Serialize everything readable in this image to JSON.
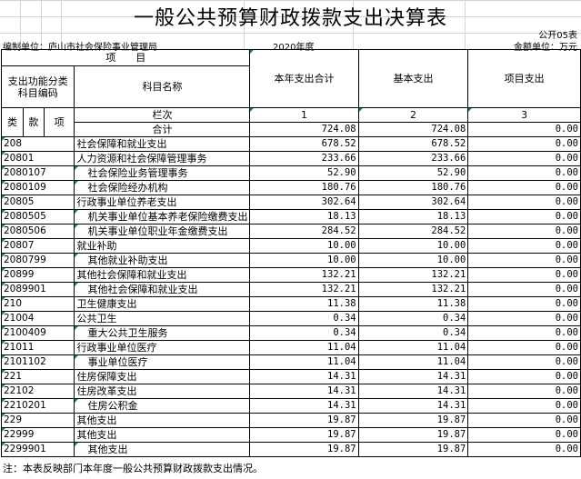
{
  "title": "一般公共预算财政拨款支出决算表",
  "form_no": "公开05表",
  "org": "编制单位：庐山市社会保险事业管理局",
  "year": "2020年度",
  "unit": "金额单位：万元",
  "header": {
    "item": "项　　目",
    "code_label": "支出功能分类科目编码",
    "name_label": "科目名称",
    "col1": "本年支出合计",
    "col2": "基本支出",
    "col3": "项目支出",
    "lei": "类",
    "kuan": "款",
    "xiang": "项",
    "lanci": "栏次",
    "n1": "1",
    "n2": "2",
    "n3": "3"
  },
  "total": {
    "label": "合计",
    "total": "724.08",
    "basic": "724.08",
    "project": "0.00"
  },
  "rows": [
    {
      "code": "208",
      "name": "社会保障和就业支出",
      "total": "678.52",
      "basic": "678.52",
      "project": "0.00",
      "indent": false
    },
    {
      "code": "20801",
      "name": "人力资源和社会保障管理事务",
      "total": "233.66",
      "basic": "233.66",
      "project": "0.00",
      "indent": false
    },
    {
      "code": "2080107",
      "name": "社会保险业务管理事务",
      "total": "52.90",
      "basic": "52.90",
      "project": "0.00",
      "indent": true
    },
    {
      "code": "2080109",
      "name": "社会保险经办机构",
      "total": "180.76",
      "basic": "180.76",
      "project": "0.00",
      "indent": true
    },
    {
      "code": "20805",
      "name": "行政事业单位养老支出",
      "total": "302.64",
      "basic": "302.64",
      "project": "0.00",
      "indent": false
    },
    {
      "code": "2080505",
      "name": "机关事业单位基本养老保险缴费支出",
      "total": "18.13",
      "basic": "18.13",
      "project": "0.00",
      "indent": true
    },
    {
      "code": "2080506",
      "name": "机关事业单位职业年金缴费支出",
      "total": "284.52",
      "basic": "284.52",
      "project": "0.00",
      "indent": true
    },
    {
      "code": "20807",
      "name": "就业补助",
      "total": "10.00",
      "basic": "10.00",
      "project": "0.00",
      "indent": false
    },
    {
      "code": "2080799",
      "name": "其他就业补助支出",
      "total": "10.00",
      "basic": "10.00",
      "project": "0.00",
      "indent": true
    },
    {
      "code": "20899",
      "name": "其他社会保障和就业支出",
      "total": "132.21",
      "basic": "132.21",
      "project": "0.00",
      "indent": false
    },
    {
      "code": "2089901",
      "name": "其他社会保障和就业支出",
      "total": "132.21",
      "basic": "132.21",
      "project": "0.00",
      "indent": true
    },
    {
      "code": "210",
      "name": "卫生健康支出",
      "total": "11.38",
      "basic": "11.38",
      "project": "0.00",
      "indent": false
    },
    {
      "code": "21004",
      "name": "公共卫生",
      "total": "0.34",
      "basic": "0.34",
      "project": "0.00",
      "indent": false
    },
    {
      "code": "2100409",
      "name": "重大公共卫生服务",
      "total": "0.34",
      "basic": "0.34",
      "project": "0.00",
      "indent": true
    },
    {
      "code": "21011",
      "name": "行政事业单位医疗",
      "total": "11.04",
      "basic": "11.04",
      "project": "0.00",
      "indent": false
    },
    {
      "code": "2101102",
      "name": "事业单位医疗",
      "total": "11.04",
      "basic": "11.04",
      "project": "0.00",
      "indent": true
    },
    {
      "code": "221",
      "name": "住房保障支出",
      "total": "14.31",
      "basic": "14.31",
      "project": "0.00",
      "indent": false
    },
    {
      "code": "22102",
      "name": "住房改革支出",
      "total": "14.31",
      "basic": "14.31",
      "project": "0.00",
      "indent": false
    },
    {
      "code": "2210201",
      "name": "住房公积金",
      "total": "14.31",
      "basic": "14.31",
      "project": "0.00",
      "indent": true
    },
    {
      "code": "229",
      "name": "其他支出",
      "total": "19.87",
      "basic": "19.87",
      "project": "0.00",
      "indent": false
    },
    {
      "code": "22999",
      "name": "其他支出",
      "total": "19.87",
      "basic": "19.87",
      "project": "0.00",
      "indent": false
    },
    {
      "code": "2299901",
      "name": "其他支出",
      "total": "19.87",
      "basic": "19.87",
      "project": "0.00",
      "indent": true
    }
  ],
  "note": "注：本表反映部门本年度一般公共预算财政拨款支出情况。",
  "colors": {
    "gridline": "#d4d4d4",
    "comment_marker": "#1a8f2a"
  }
}
